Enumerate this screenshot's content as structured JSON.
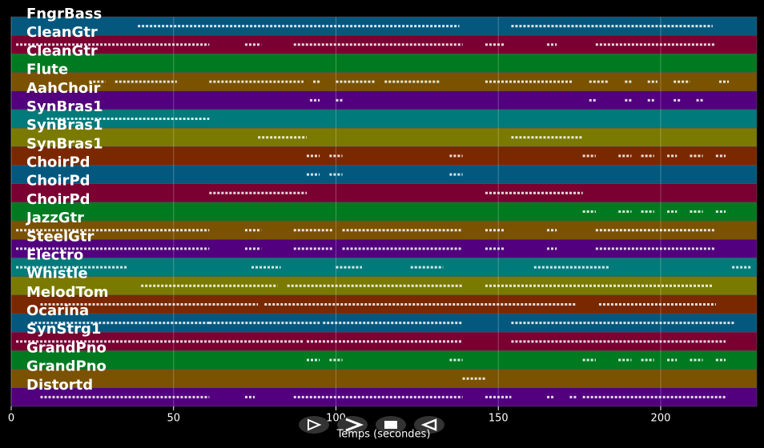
{
  "chart_data": {
    "type": "pianoroll",
    "xlabel": "Temps (secondes)",
    "xlim": [
      0,
      229.6
    ],
    "xticks": [
      0,
      50,
      100,
      150,
      200
    ],
    "grid": true,
    "series": [
      {
        "name": "FngrBass",
        "color": "#04587e",
        "notes": [
          [
            39,
            138
          ],
          [
            154,
            216
          ]
        ]
      },
      {
        "name": "CleanGtr",
        "color": "#7a0032",
        "notes": [
          [
            1.5,
            61
          ],
          [
            72,
            77
          ],
          [
            87,
            139
          ],
          [
            146,
            152
          ],
          [
            165,
            168
          ],
          [
            180,
            217
          ]
        ]
      },
      {
        "name": "CleanGtr",
        "color": "#007a20",
        "notes": []
      },
      {
        "name": "Flute",
        "color": "#7a5200",
        "notes": [
          [
            24,
            29
          ],
          [
            32,
            51
          ],
          [
            61,
            90
          ],
          [
            93,
            95
          ],
          [
            100,
            112
          ],
          [
            115,
            132
          ],
          [
            146,
            173
          ],
          [
            178,
            184
          ],
          [
            189,
            191
          ],
          [
            196,
            199
          ],
          [
            204,
            209
          ],
          [
            218,
            221
          ]
        ]
      },
      {
        "name": "AahChoir",
        "color": "#52007e",
        "notes": [
          [
            92,
            95
          ],
          [
            100,
            102
          ],
          [
            178,
            180
          ],
          [
            189,
            191
          ],
          [
            196,
            198
          ],
          [
            204,
            206
          ],
          [
            211,
            213
          ]
        ]
      },
      {
        "name": "SynBras1",
        "color": "#007a7a",
        "notes": [
          [
            11,
            61
          ]
        ]
      },
      {
        "name": "SynBras1",
        "color": "#7a7a00",
        "notes": [
          [
            76,
            91
          ],
          [
            154,
            176
          ]
        ]
      },
      {
        "name": "SynBras1",
        "color": "#7a2800",
        "notes": [
          [
            91,
            95
          ],
          [
            98,
            102
          ],
          [
            135,
            139
          ],
          [
            176,
            180
          ],
          [
            187,
            191
          ],
          [
            194,
            198
          ],
          [
            202,
            205
          ],
          [
            209,
            213
          ],
          [
            217,
            220
          ]
        ]
      },
      {
        "name": "ChoirPd",
        "color": "#04587e",
        "notes": [
          [
            91,
            95
          ],
          [
            98,
            102
          ],
          [
            135,
            139
          ]
        ]
      },
      {
        "name": "ChoirPd",
        "color": "#7a0032",
        "notes": [
          [
            61,
            91
          ],
          [
            146,
            176
          ]
        ]
      },
      {
        "name": "ChoirPd",
        "color": "#007a20",
        "notes": [
          [
            176,
            180
          ],
          [
            187,
            191
          ],
          [
            194,
            198
          ],
          [
            202,
            205
          ],
          [
            209,
            213
          ],
          [
            217,
            220
          ]
        ]
      },
      {
        "name": "JazzGtr",
        "color": "#7a5200",
        "notes": [
          [
            1.5,
            61
          ],
          [
            72,
            77
          ],
          [
            87,
            99
          ],
          [
            102,
            139
          ],
          [
            146,
            152
          ],
          [
            165,
            168
          ],
          [
            180,
            217
          ]
        ]
      },
      {
        "name": "SteelGtr",
        "color": "#52007e",
        "notes": [
          [
            1.5,
            61
          ],
          [
            72,
            77
          ],
          [
            87,
            99
          ],
          [
            102,
            139
          ],
          [
            146,
            152
          ],
          [
            165,
            168
          ],
          [
            180,
            217
          ]
        ]
      },
      {
        "name": "Electro",
        "color": "#007a7a",
        "notes": [
          [
            1.5,
            36
          ],
          [
            74,
            83
          ],
          [
            100,
            108
          ],
          [
            123,
            133
          ],
          [
            161,
            184
          ],
          [
            222,
            228
          ]
        ]
      },
      {
        "name": "Whistle",
        "color": "#7a7a00",
        "notes": [
          [
            40,
            82
          ],
          [
            85,
            139
          ],
          [
            146,
            216
          ]
        ]
      },
      {
        "name": "MelodTom",
        "color": "#7a2800",
        "notes": [
          [
            9,
            76
          ],
          [
            78,
            174
          ],
          [
            181,
            217
          ]
        ]
      },
      {
        "name": "Ocarina",
        "color": "#04587e",
        "notes": [
          [
            6,
            61
          ],
          [
            61,
            95
          ],
          [
            96,
            139
          ],
          [
            154,
            223
          ]
        ]
      },
      {
        "name": "SynStrg1",
        "color": "#7a0032",
        "notes": [
          [
            1.5,
            90
          ],
          [
            91,
            139
          ],
          [
            154,
            220
          ]
        ]
      },
      {
        "name": "GrandPno",
        "color": "#007a20",
        "notes": [
          [
            91,
            95
          ],
          [
            98,
            102
          ],
          [
            135,
            139
          ],
          [
            176,
            180
          ],
          [
            187,
            191
          ],
          [
            194,
            198
          ],
          [
            202,
            205
          ],
          [
            209,
            213
          ],
          [
            217,
            220
          ]
        ]
      },
      {
        "name": "GrandPno",
        "color": "#7a5200",
        "notes": [
          [
            139,
            146
          ]
        ]
      },
      {
        "name": "Distortd",
        "color": "#52007e",
        "notes": [
          [
            9,
            61
          ],
          [
            72,
            75
          ],
          [
            87,
            139
          ],
          [
            146,
            154
          ],
          [
            165,
            167
          ],
          [
            172,
            174
          ],
          [
            176,
            220
          ]
        ]
      }
    ]
  }
}
